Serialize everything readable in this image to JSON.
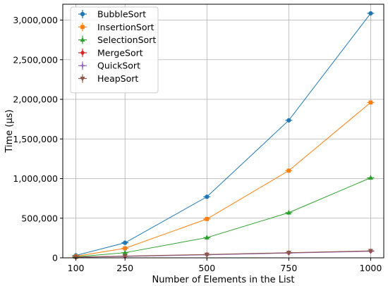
{
  "chart_data": {
    "type": "line",
    "title": "",
    "xlabel": "Number of Elements in the List",
    "ylabel": "Time (µs)",
    "x": [
      100,
      250,
      500,
      750,
      1000
    ],
    "x_tick_labels": [
      "100",
      "250",
      "500",
      "750",
      "1000"
    ],
    "y_ticks": [
      0,
      500000,
      1000000,
      1500000,
      2000000,
      2500000,
      3000000
    ],
    "y_tick_labels": [
      "0",
      "500,000",
      "1,000,000",
      "1,500,000",
      "2,000,000",
      "2,500,000",
      "3,000,000"
    ],
    "ylim": [
      0,
      3200000
    ],
    "grid": true,
    "legend_position": "top-left",
    "series": [
      {
        "name": "BubbleSort",
        "color": "#1f77b4",
        "marker": "circle",
        "values": [
          30000,
          190000,
          770000,
          1735000,
          3085000
        ]
      },
      {
        "name": "InsertionSort",
        "color": "#ff7f0e",
        "marker": "square",
        "values": [
          20000,
          120000,
          490000,
          1100000,
          1960000
        ]
      },
      {
        "name": "SelectionSort",
        "color": "#2ca02c",
        "marker": "triangle-up",
        "values": [
          12000,
          65000,
          255000,
          570000,
          1010000
        ]
      },
      {
        "name": "MergeSort",
        "color": "#d62728",
        "marker": "diamond",
        "values": [
          8000,
          20000,
          40000,
          62000,
          85000
        ]
      },
      {
        "name": "QuickSort",
        "color": "#9467bd",
        "marker": "plus",
        "values": [
          7000,
          18000,
          38000,
          60000,
          82000
        ]
      },
      {
        "name": "HeapSort",
        "color": "#8c564b",
        "marker": "triangle-down",
        "values": [
          9000,
          22000,
          42000,
          65000,
          88000
        ]
      }
    ]
  }
}
